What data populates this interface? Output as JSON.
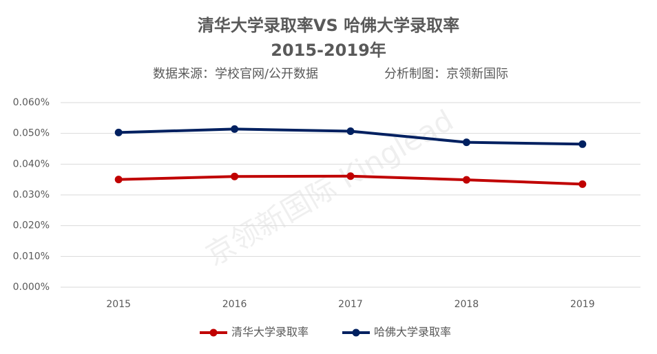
{
  "chart_data": {
    "type": "line",
    "title": "清华大学录取率VS 哈佛大学录取率",
    "subtitle": "2015-2019年",
    "source": "数据来源：学校官网/公开数据",
    "credit": "分析制图：京领新国际",
    "watermark": "京领新国际 Kinglead",
    "categories": [
      "2015",
      "2016",
      "2017",
      "2018",
      "2019"
    ],
    "series": [
      {
        "name": "清华大学录取率",
        "color": "#c00000",
        "values": [
          0.035,
          0.036,
          0.0361,
          0.0349,
          0.0335
        ]
      },
      {
        "name": "哈佛大学录取率",
        "color": "#002060",
        "values": [
          0.0503,
          0.0514,
          0.0507,
          0.0471,
          0.0465
        ]
      }
    ],
    "ylim": [
      0,
      0.06
    ],
    "yticks": [
      {
        "value": 0,
        "label": "0.000%"
      },
      {
        "value": 0.01,
        "label": "0.010%"
      },
      {
        "value": 0.02,
        "label": "0.020%"
      },
      {
        "value": 0.03,
        "label": "0.030%"
      },
      {
        "value": 0.04,
        "label": "0.040%"
      },
      {
        "value": 0.05,
        "label": "0.050%"
      },
      {
        "value": 0.06,
        "label": "0.060%"
      }
    ],
    "grid": true,
    "legend": "bottom"
  }
}
